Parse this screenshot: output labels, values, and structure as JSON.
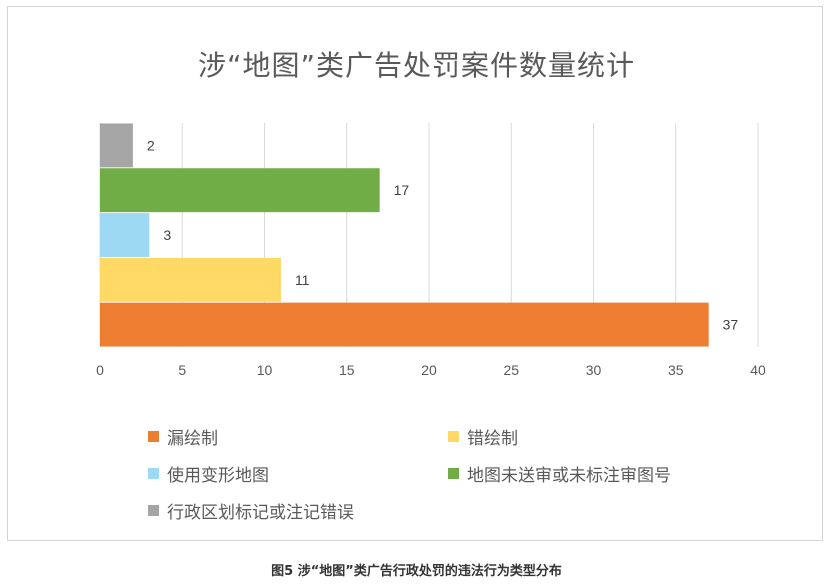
{
  "caption": "图5 涉“地图”类广告行政处罚的违法行为类型分布",
  "chart_data": {
    "type": "bar",
    "orientation": "horizontal",
    "title": "涉“地图”类广告处罚案件数量统计",
    "xlim": [
      0,
      40
    ],
    "x_ticks": [
      "0",
      "5",
      "10",
      "15",
      "20",
      "25",
      "30",
      "35",
      "40"
    ],
    "grid": "vertical",
    "legend_position": "bottom",
    "series": [
      {
        "name": "漏绘制",
        "value": 37,
        "color": "#ED7D31"
      },
      {
        "name": "错绘制",
        "value": 11,
        "color": "#FFD966"
      },
      {
        "name": "使用变形地图",
        "value": 3,
        "color": "#9DD9F3"
      },
      {
        "name": "地图未送审或未标注审图号",
        "value": 17,
        "color": "#70AD47"
      },
      {
        "name": "行政区划标记或注记错误",
        "value": 2,
        "color": "#A5A5A5"
      }
    ]
  }
}
